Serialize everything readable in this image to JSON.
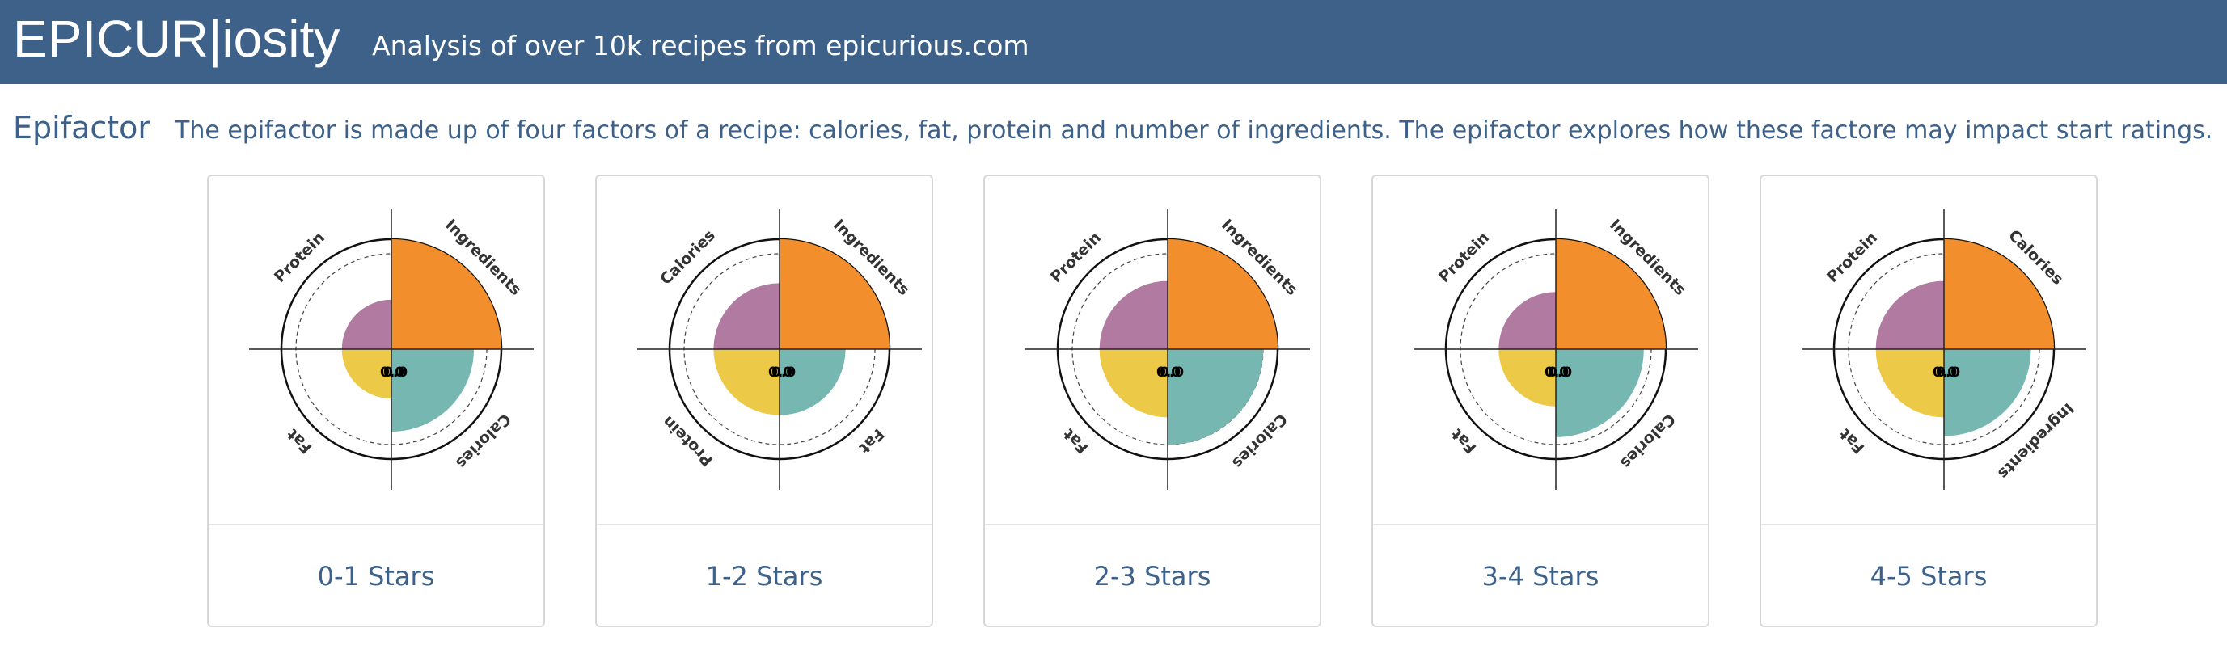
{
  "header": {
    "brand": "EPICUR|iosity",
    "tagline": "Analysis of over 10k recipes from epicurious.com"
  },
  "section": {
    "title": "Epifactor",
    "description": "The epifactor is made up of four factors of a recipe: calories, fat, protein and number of ingredients. The epifactor explores how these factore may impact start ratings."
  },
  "colors": {
    "header_bg": "#3d6189",
    "orange": "#f28e2b",
    "teal": "#76b7b2",
    "yellow": "#edc948",
    "purple": "#b07aa1"
  },
  "zero_label": "0.0",
  "chart_data": [
    {
      "type": "polar-area",
      "label": "0-1 Stars",
      "quadrants": [
        {
          "name": "Ingredients",
          "value": 1.0,
          "color": "#f28e2b",
          "label_pos": "top-right"
        },
        {
          "name": "Calories",
          "value": 0.75,
          "color": "#76b7b2",
          "label_pos": "bottom-right"
        },
        {
          "name": "Fat",
          "value": 0.45,
          "color": "#edc948",
          "label_pos": "bottom-left"
        },
        {
          "name": "Protein",
          "value": 0.45,
          "color": "#b07aa1",
          "label_pos": "top-left"
        }
      ]
    },
    {
      "type": "polar-area",
      "label": "1-2 Stars",
      "quadrants": [
        {
          "name": "Ingredients",
          "value": 1.0,
          "color": "#f28e2b",
          "label_pos": "top-right"
        },
        {
          "name": "Fat",
          "value": 0.6,
          "color": "#76b7b2",
          "label_pos": "bottom-right"
        },
        {
          "name": "Protein",
          "value": 0.6,
          "color": "#edc948",
          "label_pos": "bottom-left"
        },
        {
          "name": "Calories",
          "value": 0.6,
          "color": "#b07aa1",
          "label_pos": "top-left"
        }
      ]
    },
    {
      "type": "polar-area",
      "label": "2-3 Stars",
      "quadrants": [
        {
          "name": "Ingredients",
          "value": 1.0,
          "color": "#f28e2b",
          "label_pos": "top-right"
        },
        {
          "name": "Calories",
          "value": 0.87,
          "color": "#76b7b2",
          "label_pos": "bottom-right"
        },
        {
          "name": "Fat",
          "value": 0.62,
          "color": "#edc948",
          "label_pos": "bottom-left"
        },
        {
          "name": "Protein",
          "value": 0.62,
          "color": "#b07aa1",
          "label_pos": "top-left"
        }
      ]
    },
    {
      "type": "polar-area",
      "label": "3-4 Stars",
      "quadrants": [
        {
          "name": "Ingredients",
          "value": 1.0,
          "color": "#f28e2b",
          "label_pos": "top-right"
        },
        {
          "name": "Calories",
          "value": 0.8,
          "color": "#76b7b2",
          "label_pos": "bottom-right"
        },
        {
          "name": "Fat",
          "value": 0.52,
          "color": "#edc948",
          "label_pos": "bottom-left"
        },
        {
          "name": "Protein",
          "value": 0.52,
          "color": "#b07aa1",
          "label_pos": "top-left"
        }
      ]
    },
    {
      "type": "polar-area",
      "label": "4-5 Stars",
      "quadrants": [
        {
          "name": "Calories",
          "value": 1.0,
          "color": "#f28e2b",
          "label_pos": "top-right"
        },
        {
          "name": "Ingredients",
          "value": 0.79,
          "color": "#76b7b2",
          "label_pos": "bottom-right"
        },
        {
          "name": "Fat",
          "value": 0.62,
          "color": "#edc948",
          "label_pos": "bottom-left"
        },
        {
          "name": "Protein",
          "value": 0.62,
          "color": "#b07aa1",
          "label_pos": "top-left"
        }
      ]
    }
  ]
}
